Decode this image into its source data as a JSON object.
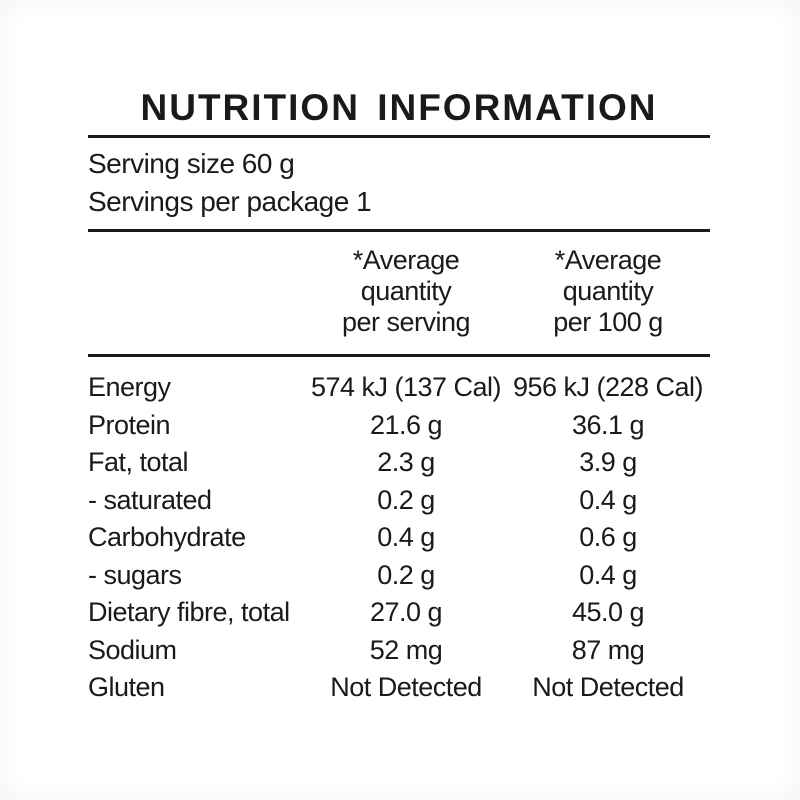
{
  "label": {
    "title": "NUTRITION INFORMATION",
    "serving_size": "Serving size 60 g",
    "servings_per_package": "Servings per package 1",
    "column_headers": {
      "per_serving": "*Average\nquantity\nper serving",
      "per_100g": "*Average\nquantity\nper 100 g"
    },
    "rows": [
      {
        "label": "Energy",
        "per_serving": "574 kJ (137 Cal)",
        "per_100g": "956 kJ (228 Cal)"
      },
      {
        "label": "Protein",
        "per_serving": "21.6 g",
        "per_100g": "36.1 g"
      },
      {
        "label": "Fat, total",
        "per_serving": "2.3 g",
        "per_100g": "3.9 g"
      },
      {
        "label": "- saturated",
        "per_serving": "0.2 g",
        "per_100g": "0.4 g"
      },
      {
        "label": "Carbohydrate",
        "per_serving": "0.4 g",
        "per_100g": "0.6 g"
      },
      {
        "label": "- sugars",
        "per_serving": "0.2 g",
        "per_100g": "0.4 g"
      },
      {
        "label": "Dietary fibre, total",
        "per_serving": "27.0 g",
        "per_100g": "45.0 g"
      },
      {
        "label": "Sodium",
        "per_serving": "52 mg",
        "per_100g": "87 mg"
      },
      {
        "label": "Gluten",
        "per_serving": "Not Detected",
        "per_100g": "Not Detected"
      }
    ],
    "colors": {
      "text": "#1a1a1a",
      "background": "#ffffff"
    }
  }
}
